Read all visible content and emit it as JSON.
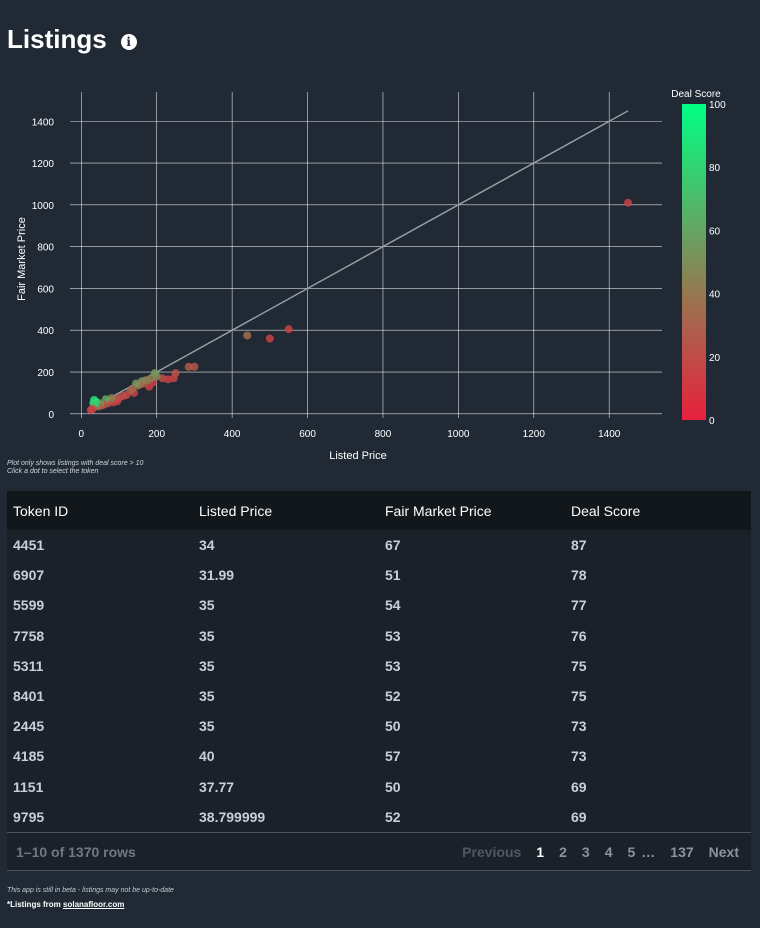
{
  "page": {
    "title": "Listings",
    "info_icon": "info-circle-icon"
  },
  "chart_data": {
    "type": "scatter",
    "xlabel": "Listed Price",
    "ylabel": "Fair Market Price",
    "xlim": [
      -30,
      1540
    ],
    "ylim": [
      -20,
      1540
    ],
    "xticks": [
      0,
      200,
      400,
      600,
      800,
      1000,
      1200,
      1400
    ],
    "yticks": [
      0,
      200,
      400,
      600,
      800,
      1000,
      1200,
      1400
    ],
    "grid": true,
    "reference_line": {
      "x": [
        20,
        1450
      ],
      "y": [
        20,
        1450
      ]
    },
    "colorbar": {
      "title": "Deal Score",
      "min": 0,
      "max": 100,
      "ticks": [
        0,
        20,
        40,
        60,
        80,
        100
      ],
      "low_color": "#e8203e",
      "high_color": "#00ff85"
    },
    "points": [
      {
        "x": 1450,
        "y": 1010,
        "score": 15
      },
      {
        "x": 550,
        "y": 405,
        "score": 14
      },
      {
        "x": 500,
        "y": 360,
        "score": 15
      },
      {
        "x": 440,
        "y": 375,
        "score": 35
      },
      {
        "x": 300,
        "y": 225,
        "score": 25
      },
      {
        "x": 285,
        "y": 225,
        "score": 26
      },
      {
        "x": 250,
        "y": 195,
        "score": 24
      },
      {
        "x": 245,
        "y": 170,
        "score": 18
      },
      {
        "x": 230,
        "y": 165,
        "score": 15
      },
      {
        "x": 215,
        "y": 170,
        "score": 20
      },
      {
        "x": 200,
        "y": 180,
        "score": 45
      },
      {
        "x": 195,
        "y": 195,
        "score": 55
      },
      {
        "x": 190,
        "y": 150,
        "score": 15
      },
      {
        "x": 185,
        "y": 170,
        "score": 45
      },
      {
        "x": 180,
        "y": 130,
        "score": 14
      },
      {
        "x": 175,
        "y": 160,
        "score": 40
      },
      {
        "x": 170,
        "y": 160,
        "score": 45
      },
      {
        "x": 165,
        "y": 145,
        "score": 30
      },
      {
        "x": 160,
        "y": 155,
        "score": 50
      },
      {
        "x": 155,
        "y": 140,
        "score": 35
      },
      {
        "x": 150,
        "y": 135,
        "score": 35
      },
      {
        "x": 145,
        "y": 145,
        "score": 55
      },
      {
        "x": 140,
        "y": 100,
        "score": 15
      },
      {
        "x": 135,
        "y": 120,
        "score": 35
      },
      {
        "x": 130,
        "y": 110,
        "score": 30
      },
      {
        "x": 120,
        "y": 90,
        "score": 18
      },
      {
        "x": 110,
        "y": 85,
        "score": 20
      },
      {
        "x": 100,
        "y": 75,
        "score": 20
      },
      {
        "x": 95,
        "y": 60,
        "score": 14
      },
      {
        "x": 90,
        "y": 70,
        "score": 25
      },
      {
        "x": 85,
        "y": 55,
        "score": 15
      },
      {
        "x": 80,
        "y": 75,
        "score": 45
      },
      {
        "x": 75,
        "y": 65,
        "score": 40
      },
      {
        "x": 70,
        "y": 50,
        "score": 20
      },
      {
        "x": 65,
        "y": 70,
        "score": 60
      },
      {
        "x": 60,
        "y": 45,
        "score": 25
      },
      {
        "x": 55,
        "y": 40,
        "score": 20
      },
      {
        "x": 50,
        "y": 50,
        "score": 55
      },
      {
        "x": 45,
        "y": 35,
        "score": 25
      },
      {
        "x": 42,
        "y": 40,
        "score": 40
      },
      {
        "x": 40,
        "y": 57,
        "score": 73
      },
      {
        "x": 38.8,
        "y": 52,
        "score": 69
      },
      {
        "x": 37.77,
        "y": 50,
        "score": 69
      },
      {
        "x": 35,
        "y": 54,
        "score": 77
      },
      {
        "x": 35,
        "y": 53,
        "score": 76
      },
      {
        "x": 35,
        "y": 52,
        "score": 75
      },
      {
        "x": 35,
        "y": 50,
        "score": 73
      },
      {
        "x": 34,
        "y": 67,
        "score": 87
      },
      {
        "x": 31.99,
        "y": 51,
        "score": 78
      },
      {
        "x": 30,
        "y": 25,
        "score": 30
      },
      {
        "x": 28,
        "y": 20,
        "score": 20
      },
      {
        "x": 25,
        "y": 18,
        "score": 15
      }
    ]
  },
  "chart_notes": [
    "Plot only shows listings with deal score > 10",
    "Click a dot to select the token"
  ],
  "table": {
    "columns": [
      "Token ID",
      "Listed Price",
      "Fair Market Price",
      "Deal Score"
    ],
    "rows": [
      [
        "4451",
        "34",
        "67",
        "87"
      ],
      [
        "6907",
        "31.99",
        "51",
        "78"
      ],
      [
        "5599",
        "35",
        "54",
        "77"
      ],
      [
        "7758",
        "35",
        "53",
        "76"
      ],
      [
        "5311",
        "35",
        "53",
        "75"
      ],
      [
        "8401",
        "35",
        "52",
        "75"
      ],
      [
        "2445",
        "35",
        "50",
        "73"
      ],
      [
        "4185",
        "40",
        "57",
        "73"
      ],
      [
        "1151",
        "37.77",
        "50",
        "69"
      ],
      [
        "9795",
        "38.799999",
        "52",
        "69"
      ]
    ]
  },
  "pagination": {
    "summary": "1–10 of 1370 rows",
    "previous": "Previous",
    "pages": [
      "1",
      "2",
      "3",
      "4",
      "5"
    ],
    "ellipsis": "…",
    "last": "137",
    "next": "Next",
    "current": "1"
  },
  "footer": {
    "beta": "This app is still in beta - listings may not be up-to-date",
    "source_prefix": "*Listings from ",
    "source_link": "solanafloor.com"
  }
}
